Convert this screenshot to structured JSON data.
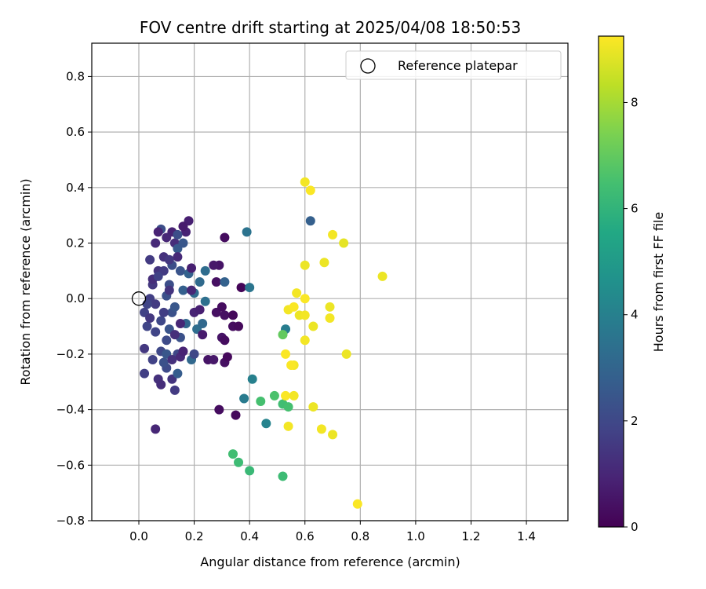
{
  "chart_data": {
    "type": "scatter",
    "title": "FOV centre drift starting at 2025/04/08 18:50:53",
    "xlabel": "Angular distance from reference (arcmin)",
    "ylabel": "Rotation from reference (arcmin)",
    "xlim": [
      -0.17,
      1.55
    ],
    "ylim": [
      -0.8,
      0.92
    ],
    "xticks": [
      0.0,
      0.2,
      0.4,
      0.6,
      0.8,
      1.0,
      1.2,
      1.4
    ],
    "xtick_labels": [
      "0.0",
      "0.2",
      "0.4",
      "0.6",
      "0.8",
      "1.0",
      "1.2",
      "1.4"
    ],
    "yticks": [
      -0.8,
      -0.6,
      -0.4,
      -0.2,
      0.0,
      0.2,
      0.4,
      0.6,
      0.8
    ],
    "ytick_labels": [
      "−0.8",
      "−0.6",
      "−0.4",
      "−0.2",
      "0.0",
      "0.2",
      "0.4",
      "0.6",
      "0.8"
    ],
    "grid": true,
    "legend": {
      "placement": "top-right",
      "entries": [
        "Reference platepar"
      ]
    },
    "reference_point": {
      "x": 0.0,
      "y": 0.0
    },
    "colorbar": {
      "label": "Hours from first FF file",
      "colormap": "viridis",
      "range": [
        0,
        9.25
      ],
      "ticks": [
        0,
        2,
        4,
        6,
        8
      ],
      "tick_labels": [
        "0",
        "2",
        "4",
        "6",
        "8"
      ]
    },
    "points": [
      {
        "x": 0.02,
        "y": -0.05,
        "h": 1.8
      },
      {
        "x": 0.03,
        "y": -0.1,
        "h": 1.9
      },
      {
        "x": 0.04,
        "y": 0.0,
        "h": 1.7
      },
      {
        "x": 0.05,
        "y": 0.05,
        "h": 1.5
      },
      {
        "x": 0.06,
        "y": -0.02,
        "h": 1.6
      },
      {
        "x": 0.07,
        "y": 0.1,
        "h": 1.4
      },
      {
        "x": 0.08,
        "y": -0.08,
        "h": 2.0
      },
      {
        "x": 0.09,
        "y": 0.15,
        "h": 1.3
      },
      {
        "x": 0.1,
        "y": -0.15,
        "h": 2.1
      },
      {
        "x": 0.11,
        "y": 0.05,
        "h": 2.2
      },
      {
        "x": 0.12,
        "y": -0.05,
        "h": 2.3
      },
      {
        "x": 0.13,
        "y": 0.2,
        "h": 1.2
      },
      {
        "x": 0.14,
        "y": -0.2,
        "h": 2.0
      },
      {
        "x": 0.15,
        "y": 0.1,
        "h": 2.4
      },
      {
        "x": 0.06,
        "y": 0.2,
        "h": 1.1
      },
      {
        "x": 0.08,
        "y": 0.25,
        "h": 2.2
      },
      {
        "x": 0.07,
        "y": 0.24,
        "h": 0.9
      },
      {
        "x": 0.05,
        "y": 0.07,
        "h": 1.2
      },
      {
        "x": 0.04,
        "y": 0.14,
        "h": 1.6
      },
      {
        "x": 0.03,
        "y": -0.02,
        "h": 1.9
      },
      {
        "x": 0.02,
        "y": -0.18,
        "h": 1.5
      },
      {
        "x": 0.02,
        "y": -0.27,
        "h": 1.7
      },
      {
        "x": 0.05,
        "y": -0.22,
        "h": 1.8
      },
      {
        "x": 0.07,
        "y": -0.29,
        "h": 1.3
      },
      {
        "x": 0.08,
        "y": -0.31,
        "h": 1.2
      },
      {
        "x": 0.06,
        "y": -0.47,
        "h": 1.0
      },
      {
        "x": 0.1,
        "y": -0.25,
        "h": 2.1
      },
      {
        "x": 0.12,
        "y": -0.29,
        "h": 1.4
      },
      {
        "x": 0.13,
        "y": -0.33,
        "h": 1.6
      },
      {
        "x": 0.09,
        "y": -0.05,
        "h": 1.7
      },
      {
        "x": 0.1,
        "y": 0.01,
        "h": 2.3
      },
      {
        "x": 0.11,
        "y": -0.11,
        "h": 2.4
      },
      {
        "x": 0.12,
        "y": 0.12,
        "h": 2.2
      },
      {
        "x": 0.13,
        "y": -0.03,
        "h": 2.5
      },
      {
        "x": 0.14,
        "y": 0.18,
        "h": 2.6
      },
      {
        "x": 0.15,
        "y": -0.14,
        "h": 2.3
      },
      {
        "x": 0.16,
        "y": 0.03,
        "h": 2.8
      },
      {
        "x": 0.17,
        "y": -0.09,
        "h": 3.0
      },
      {
        "x": 0.18,
        "y": 0.09,
        "h": 2.9
      },
      {
        "x": 0.19,
        "y": -0.22,
        "h": 3.1
      },
      {
        "x": 0.2,
        "y": 0.02,
        "h": 3.2
      },
      {
        "x": 0.21,
        "y": -0.11,
        "h": 3.3
      },
      {
        "x": 0.22,
        "y": 0.06,
        "h": 3.2
      },
      {
        "x": 0.23,
        "y": -0.09,
        "h": 3.1
      },
      {
        "x": 0.24,
        "y": 0.1,
        "h": 3.3
      },
      {
        "x": 0.24,
        "y": -0.01,
        "h": 3.4
      },
      {
        "x": 0.2,
        "y": -0.2,
        "h": 2.0
      },
      {
        "x": 0.17,
        "y": 0.24,
        "h": 0.9
      },
      {
        "x": 0.18,
        "y": 0.28,
        "h": 0.8
      },
      {
        "x": 0.16,
        "y": 0.26,
        "h": 0.7
      },
      {
        "x": 0.12,
        "y": 0.24,
        "h": 0.9
      },
      {
        "x": 0.1,
        "y": 0.22,
        "h": 1.0
      },
      {
        "x": 0.14,
        "y": 0.15,
        "h": 1.1
      },
      {
        "x": 0.14,
        "y": 0.23,
        "h": 2.2
      },
      {
        "x": 0.16,
        "y": 0.2,
        "h": 2.5
      },
      {
        "x": 0.11,
        "y": 0.14,
        "h": 1.5
      },
      {
        "x": 0.09,
        "y": 0.1,
        "h": 1.6
      },
      {
        "x": 0.07,
        "y": 0.08,
        "h": 1.8
      },
      {
        "x": 0.06,
        "y": -0.12,
        "h": 1.9
      },
      {
        "x": 0.04,
        "y": -0.07,
        "h": 1.5
      },
      {
        "x": 0.08,
        "y": -0.19,
        "h": 2.0
      },
      {
        "x": 0.09,
        "y": -0.23,
        "h": 2.3
      },
      {
        "x": 0.1,
        "y": -0.2,
        "h": 2.5
      },
      {
        "x": 0.12,
        "y": -0.22,
        "h": 1.3
      },
      {
        "x": 0.14,
        "y": -0.27,
        "h": 2.7
      },
      {
        "x": 0.15,
        "y": -0.21,
        "h": 1.1
      },
      {
        "x": 0.16,
        "y": -0.19,
        "h": 0.9
      },
      {
        "x": 0.15,
        "y": -0.09,
        "h": 1.0
      },
      {
        "x": 0.13,
        "y": -0.13,
        "h": 1.2
      },
      {
        "x": 0.11,
        "y": 0.03,
        "h": 1.4
      },
      {
        "x": 0.19,
        "y": 0.11,
        "h": 0.8
      },
      {
        "x": 0.19,
        "y": 0.03,
        "h": 1.0
      },
      {
        "x": 0.2,
        "y": -0.05,
        "h": 0.9
      },
      {
        "x": 0.23,
        "y": -0.13,
        "h": 0.7
      },
      {
        "x": 0.22,
        "y": -0.04,
        "h": 0.8
      },
      {
        "x": 0.25,
        "y": -0.22,
        "h": 0.5
      },
      {
        "x": 0.27,
        "y": -0.22,
        "h": 0.6
      },
      {
        "x": 0.28,
        "y": -0.05,
        "h": 0.4
      },
      {
        "x": 0.29,
        "y": 0.12,
        "h": 0.5
      },
      {
        "x": 0.27,
        "y": 0.12,
        "h": 0.6
      },
      {
        "x": 0.28,
        "y": 0.06,
        "h": 0.4
      },
      {
        "x": 0.3,
        "y": -0.03,
        "h": 0.3
      },
      {
        "x": 0.31,
        "y": -0.06,
        "h": 0.4
      },
      {
        "x": 0.3,
        "y": -0.14,
        "h": 0.5
      },
      {
        "x": 0.31,
        "y": -0.15,
        "h": 0.3
      },
      {
        "x": 0.31,
        "y": -0.23,
        "h": 0.4
      },
      {
        "x": 0.32,
        "y": -0.21,
        "h": 0.2
      },
      {
        "x": 0.29,
        "y": -0.4,
        "h": 0.3
      },
      {
        "x": 0.31,
        "y": 0.22,
        "h": 0.3
      },
      {
        "x": 0.31,
        "y": 0.06,
        "h": 2.9
      },
      {
        "x": 0.34,
        "y": -0.06,
        "h": 0.2
      },
      {
        "x": 0.34,
        "y": -0.1,
        "h": 0.3
      },
      {
        "x": 0.36,
        "y": -0.1,
        "h": 0.2
      },
      {
        "x": 0.35,
        "y": -0.42,
        "h": 0.2
      },
      {
        "x": 0.37,
        "y": 0.04,
        "h": 0.1
      },
      {
        "x": 0.39,
        "y": 0.24,
        "h": 3.5
      },
      {
        "x": 0.4,
        "y": 0.04,
        "h": 3.6
      },
      {
        "x": 0.38,
        "y": -0.36,
        "h": 3.8
      },
      {
        "x": 0.41,
        "y": -0.29,
        "h": 4.0
      },
      {
        "x": 0.46,
        "y": -0.45,
        "h": 4.1
      },
      {
        "x": 0.53,
        "y": -0.11,
        "h": 3.9
      },
      {
        "x": 0.62,
        "y": 0.28,
        "h": 2.8
      },
      {
        "x": 0.34,
        "y": -0.56,
        "h": 6.4
      },
      {
        "x": 0.36,
        "y": -0.59,
        "h": 6.3
      },
      {
        "x": 0.4,
        "y": -0.62,
        "h": 6.2
      },
      {
        "x": 0.44,
        "y": -0.37,
        "h": 6.5
      },
      {
        "x": 0.49,
        "y": -0.35,
        "h": 6.6
      },
      {
        "x": 0.52,
        "y": -0.38,
        "h": 6.4
      },
      {
        "x": 0.54,
        "y": -0.39,
        "h": 6.5
      },
      {
        "x": 0.52,
        "y": -0.64,
        "h": 6.3
      },
      {
        "x": 0.52,
        "y": -0.13,
        "h": 7.0
      },
      {
        "x": 0.6,
        "y": 0.42,
        "h": 9.1
      },
      {
        "x": 0.62,
        "y": 0.39,
        "h": 9.2
      },
      {
        "x": 0.6,
        "y": 0.12,
        "h": 9.0
      },
      {
        "x": 0.67,
        "y": 0.13,
        "h": 9.0
      },
      {
        "x": 0.7,
        "y": 0.23,
        "h": 9.1
      },
      {
        "x": 0.74,
        "y": 0.2,
        "h": 8.9
      },
      {
        "x": 0.88,
        "y": 0.08,
        "h": 9.0
      },
      {
        "x": 0.57,
        "y": 0.02,
        "h": 9.1
      },
      {
        "x": 0.6,
        "y": 0.0,
        "h": 9.2
      },
      {
        "x": 0.54,
        "y": -0.04,
        "h": 9.1
      },
      {
        "x": 0.56,
        "y": -0.03,
        "h": 9.2
      },
      {
        "x": 0.58,
        "y": -0.06,
        "h": 9.0
      },
      {
        "x": 0.6,
        "y": -0.06,
        "h": 9.1
      },
      {
        "x": 0.63,
        "y": -0.1,
        "h": 9.0
      },
      {
        "x": 0.6,
        "y": -0.15,
        "h": 9.1
      },
      {
        "x": 0.53,
        "y": -0.2,
        "h": 9.2
      },
      {
        "x": 0.56,
        "y": -0.24,
        "h": 9.1
      },
      {
        "x": 0.55,
        "y": -0.24,
        "h": 9.2
      },
      {
        "x": 0.69,
        "y": -0.03,
        "h": 9.0
      },
      {
        "x": 0.69,
        "y": -0.07,
        "h": 9.1
      },
      {
        "x": 0.75,
        "y": -0.2,
        "h": 9.0
      },
      {
        "x": 0.53,
        "y": -0.35,
        "h": 9.2
      },
      {
        "x": 0.56,
        "y": -0.35,
        "h": 9.1
      },
      {
        "x": 0.54,
        "y": -0.46,
        "h": 9.1
      },
      {
        "x": 0.63,
        "y": -0.39,
        "h": 9.0
      },
      {
        "x": 0.66,
        "y": -0.47,
        "h": 9.1
      },
      {
        "x": 0.7,
        "y": -0.49,
        "h": 9.0
      },
      {
        "x": 0.79,
        "y": -0.74,
        "h": 9.2
      }
    ]
  }
}
